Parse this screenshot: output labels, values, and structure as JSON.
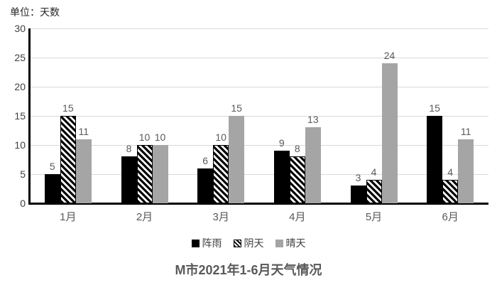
{
  "chart_data": {
    "type": "bar",
    "title": "M市2021年1-6月天气情况",
    "unit_label": "单位：天数",
    "categories": [
      "1月",
      "2月",
      "3月",
      "4月",
      "5月",
      "6月"
    ],
    "series": [
      {
        "name": "阵雨",
        "style": "solid",
        "color": "#000000",
        "values": [
          5,
          8,
          6,
          9,
          3,
          15
        ]
      },
      {
        "name": "阴天",
        "style": "hatched",
        "color": "#000000",
        "values": [
          15,
          10,
          10,
          8,
          4,
          4
        ]
      },
      {
        "name": "晴天",
        "style": "solid",
        "color": "#a5a5a5",
        "values": [
          11,
          10,
          15,
          13,
          24,
          11
        ]
      }
    ],
    "ylim": [
      0,
      30
    ],
    "yticks": [
      0,
      5,
      10,
      15,
      20,
      25,
      30
    ],
    "grid": true,
    "bar_labels": true,
    "legend_position": "bottom",
    "colors": {
      "gridline": "#d9d9d9",
      "axis": "#000000",
      "tick_label": "#404040",
      "value_label": "#595959",
      "title": "#595959",
      "background": "#ffffff"
    }
  }
}
